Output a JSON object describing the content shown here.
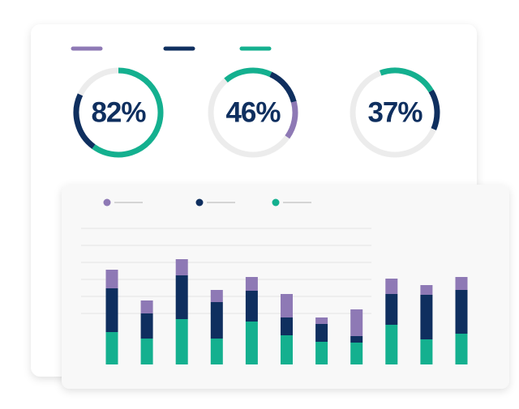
{
  "chart_data": [
    {
      "type": "donut",
      "series": [
        {
          "color": "#8e79b5"
        },
        {
          "color": "#0f2f5f"
        },
        {
          "color": "#14b08f"
        }
      ],
      "items": [
        {
          "label": "82%",
          "value": 82,
          "values": [
            null,
            22,
            60
          ]
        },
        {
          "label": "46%",
          "value": 46,
          "values": [
            14,
            14,
            18
          ]
        },
        {
          "label": "37%",
          "value": 37,
          "values": [
            null,
            15,
            22
          ]
        }
      ],
      "track_color": "#ececec"
    },
    {
      "type": "bar",
      "stacked": true,
      "ylim": [
        0,
        168
      ],
      "yticks": [
        63,
        84,
        105,
        126,
        147,
        168
      ],
      "grid": true,
      "series": [
        {
          "color": "#14b08f",
          "values": [
            40,
            32,
            56,
            32,
            53,
            36,
            28,
            27,
            49,
            31,
            38
          ]
        },
        {
          "color": "#0f2f5f",
          "values": [
            54,
            31,
            54,
            45,
            38,
            22,
            22,
            8,
            38,
            55,
            54
          ]
        },
        {
          "color": "#8e79b5",
          "values": [
            23,
            16,
            20,
            15,
            17,
            29,
            8,
            33,
            19,
            12,
            16
          ]
        }
      ]
    }
  ]
}
